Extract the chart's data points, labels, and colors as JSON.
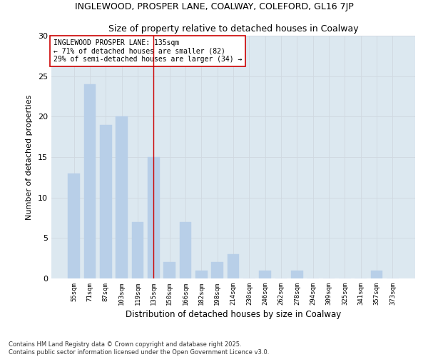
{
  "title1": "INGLEWOOD, PROSPER LANE, COALWAY, COLEFORD, GL16 7JP",
  "title2": "Size of property relative to detached houses in Coalway",
  "xlabel": "Distribution of detached houses by size in Coalway",
  "ylabel": "Number of detached properties",
  "categories": [
    "55sqm",
    "71sqm",
    "87sqm",
    "103sqm",
    "119sqm",
    "135sqm",
    "150sqm",
    "166sqm",
    "182sqm",
    "198sqm",
    "214sqm",
    "230sqm",
    "246sqm",
    "262sqm",
    "278sqm",
    "294sqm",
    "309sqm",
    "325sqm",
    "341sqm",
    "357sqm",
    "373sqm"
  ],
  "values": [
    13,
    24,
    19,
    20,
    7,
    15,
    2,
    7,
    1,
    2,
    3,
    0,
    1,
    0,
    1,
    0,
    0,
    0,
    0,
    1,
    0
  ],
  "bar_color": "#b8cfe8",
  "bar_edge_color": "#b8cfe8",
  "highlight_index": 5,
  "highlight_line_color": "#cc0000",
  "annotation_text": "INGLEWOOD PROSPER LANE: 135sqm\n← 71% of detached houses are smaller (82)\n29% of semi-detached houses are larger (34) →",
  "annotation_box_facecolor": "#ffffff",
  "annotation_box_edgecolor": "#cc0000",
  "ylim": [
    0,
    30
  ],
  "yticks": [
    0,
    5,
    10,
    15,
    20,
    25,
    30
  ],
  "grid_color": "#d0d8e0",
  "plot_bg_color": "#dce8f0",
  "fig_bg_color": "#ffffff",
  "footer": "Contains HM Land Registry data © Crown copyright and database right 2025.\nContains public sector information licensed under the Open Government Licence v3.0."
}
